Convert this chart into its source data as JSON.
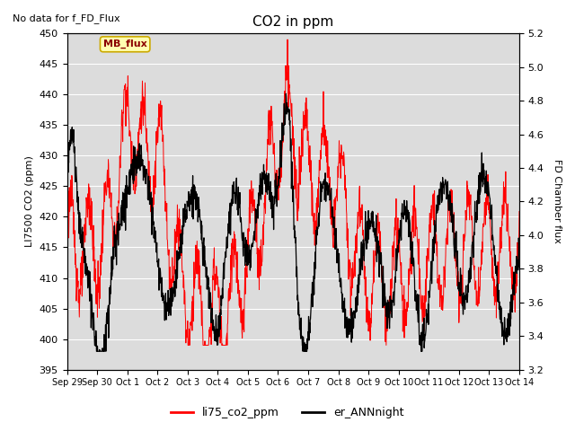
{
  "title": "CO2 in ppm",
  "left_label": "LI7500 CO2 (ppm)",
  "right_label": "FD Chamber flux",
  "note": "No data for f_FD_Flux",
  "box_label": "MB_flux",
  "ylim_left": [
    395,
    450
  ],
  "ylim_right": [
    3.2,
    5.2
  ],
  "yticks_left": [
    395,
    400,
    405,
    410,
    415,
    420,
    425,
    430,
    435,
    440,
    445,
    450
  ],
  "yticks_right": [
    3.2,
    3.4,
    3.6,
    3.8,
    4.0,
    4.2,
    4.4,
    4.6,
    4.8,
    5.0,
    5.2
  ],
  "legend_entries": [
    "li75_co2_ppm",
    "er_ANNnight"
  ],
  "color_red": "#FF0000",
  "color_black": "#000000",
  "background_color": "#DCDCDC",
  "x_tick_labels": [
    "Sep 29",
    "Sep 30",
    "Oct 1",
    "Oct 2",
    "Oct 3",
    "Oct 4",
    "Oct 5",
    "Oct 6",
    "Oct 7",
    "Oct 8",
    "Oct 9",
    "Oct 10",
    "Oct 11",
    "Oct 12",
    "Oct 13",
    "Oct 14"
  ],
  "n_days": 15,
  "n_points": 1500
}
